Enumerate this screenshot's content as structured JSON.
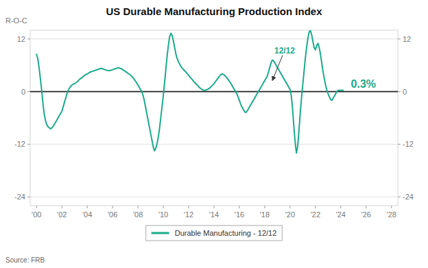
{
  "chart_data": {
    "type": "line",
    "title": "US Durable Manufacturing Production Index",
    "y_label": "R-O-C",
    "source": "Source: FRB",
    "grid": true,
    "legend": "lower center",
    "xlim": [
      1999.5,
      2028.5
    ],
    "xticks": [
      {
        "value": 2000,
        "label": "'00"
      },
      {
        "value": 2002,
        "label": "'02"
      },
      {
        "value": 2004,
        "label": "'04"
      },
      {
        "value": 2006,
        "label": "'06"
      },
      {
        "value": 2008,
        "label": "'08"
      },
      {
        "value": 2010,
        "label": "'10"
      },
      {
        "value": 2012,
        "label": "'12"
      },
      {
        "value": 2014,
        "label": "'14"
      },
      {
        "value": 2016,
        "label": "'16"
      },
      {
        "value": 2018,
        "label": "'18"
      },
      {
        "value": 2020,
        "label": "'20"
      },
      {
        "value": 2022,
        "label": "'22"
      },
      {
        "value": 2024,
        "label": "'24"
      },
      {
        "value": 2026,
        "label": "'26"
      },
      {
        "value": 2028,
        "label": "'28"
      }
    ],
    "ylim": [
      -26,
      14
    ],
    "yticks": [
      -24,
      -12,
      0,
      12
    ],
    "y2lim": [
      -26,
      14
    ],
    "y2ticks": [
      -24,
      -12,
      0,
      12
    ],
    "annotations": [
      {
        "text": "12/12",
        "x": 2018.6,
        "y": 2.5
      },
      {
        "text": "0.3%",
        "x": 2024.8,
        "y": 1.5
      }
    ],
    "x": [
      2000.0,
      2000.1,
      2000.2,
      2000.3,
      2000.4,
      2000.5,
      2000.6,
      2000.7,
      2000.8,
      2000.9,
      2001.0,
      2001.1,
      2001.2,
      2001.3,
      2001.4,
      2001.5,
      2001.6,
      2001.7,
      2001.8,
      2001.9,
      2002.0,
      2002.1,
      2002.2,
      2002.3,
      2002.4,
      2002.5,
      2002.6,
      2002.7,
      2002.8,
      2002.9,
      2003.0,
      2003.1,
      2003.2,
      2003.3,
      2003.4,
      2003.5,
      2003.6,
      2003.7,
      2003.8,
      2003.9,
      2004.0,
      2004.1,
      2004.2,
      2004.3,
      2004.4,
      2004.5,
      2004.6,
      2004.7,
      2004.8,
      2004.9,
      2005.0,
      2005.1,
      2005.2,
      2005.3,
      2005.4,
      2005.5,
      2005.6,
      2005.7,
      2005.8,
      2005.9,
      2006.0,
      2006.1,
      2006.2,
      2006.3,
      2006.4,
      2006.5,
      2006.6,
      2006.7,
      2006.8,
      2006.9,
      2007.0,
      2007.1,
      2007.2,
      2007.3,
      2007.4,
      2007.5,
      2007.6,
      2007.7,
      2007.8,
      2007.9,
      2008.0,
      2008.1,
      2008.2,
      2008.3,
      2008.4,
      2008.5,
      2008.6,
      2008.7,
      2008.8,
      2008.9,
      2009.0,
      2009.1,
      2009.2,
      2009.3,
      2009.4,
      2009.5,
      2009.6,
      2009.7,
      2009.8,
      2009.9,
      2010.0,
      2010.1,
      2010.2,
      2010.3,
      2010.4,
      2010.5,
      2010.6,
      2010.7,
      2010.8,
      2010.9,
      2011.0,
      2011.1,
      2011.2,
      2011.3,
      2011.4,
      2011.5,
      2011.6,
      2011.7,
      2011.8,
      2011.9,
      2012.0,
      2012.1,
      2012.2,
      2012.3,
      2012.4,
      2012.5,
      2012.6,
      2012.7,
      2012.8,
      2012.9,
      2013.0,
      2013.1,
      2013.2,
      2013.3,
      2013.4,
      2013.5,
      2013.6,
      2013.7,
      2013.8,
      2013.9,
      2014.0,
      2014.1,
      2014.2,
      2014.3,
      2014.4,
      2014.5,
      2014.6,
      2014.7,
      2014.8,
      2014.9,
      2015.0,
      2015.1,
      2015.2,
      2015.3,
      2015.4,
      2015.5,
      2015.6,
      2015.7,
      2015.8,
      2015.9,
      2016.0,
      2016.1,
      2016.2,
      2016.3,
      2016.4,
      2016.5,
      2016.6,
      2016.7,
      2016.8,
      2016.9,
      2017.0,
      2017.1,
      2017.2,
      2017.3,
      2017.4,
      2017.5,
      2017.6,
      2017.7,
      2017.8,
      2017.9,
      2018.0,
      2018.1,
      2018.2,
      2018.3,
      2018.4,
      2018.5,
      2018.6,
      2018.7,
      2018.8,
      2018.9,
      2019.0,
      2019.1,
      2019.2,
      2019.3,
      2019.4,
      2019.5,
      2019.6,
      2019.7,
      2019.8,
      2019.9,
      2020.0,
      2020.1,
      2020.2,
      2020.3,
      2020.4,
      2020.5,
      2020.6,
      2020.7,
      2020.8,
      2020.9,
      2021.0,
      2021.1,
      2021.2,
      2021.3,
      2021.4,
      2021.5,
      2021.6,
      2021.7,
      2021.8,
      2021.9,
      2022.0,
      2022.1,
      2022.2,
      2022.3,
      2022.4,
      2022.5,
      2022.6,
      2022.7,
      2022.8,
      2022.9,
      2023.0,
      2023.1,
      2023.2,
      2023.3,
      2023.4,
      2023.5,
      2023.6,
      2023.7,
      2023.8,
      2023.9,
      2024.0,
      2024.1,
      2024.2
    ],
    "series": [
      {
        "name": "Durable Manufacturing - 12/12",
        "color": "#1aaa8a",
        "values": [
          8.5,
          7.5,
          5.5,
          3.0,
          0.5,
          -2.5,
          -5.0,
          -6.5,
          -7.5,
          -8.0,
          -8.2,
          -8.5,
          -8.3,
          -8.0,
          -7.5,
          -7.0,
          -6.5,
          -6.0,
          -5.5,
          -5.0,
          -4.5,
          -3.5,
          -2.5,
          -1.5,
          -0.5,
          0.3,
          0.8,
          1.2,
          1.5,
          1.7,
          1.8,
          2.0,
          2.2,
          2.5,
          2.8,
          3.0,
          3.2,
          3.5,
          3.7,
          3.9,
          4.0,
          4.2,
          4.4,
          4.5,
          4.6,
          4.7,
          4.8,
          4.9,
          5.0,
          5.1,
          5.2,
          5.3,
          5.2,
          5.1,
          5.0,
          4.9,
          4.8,
          4.8,
          4.8,
          4.9,
          5.0,
          5.1,
          5.2,
          5.3,
          5.4,
          5.4,
          5.3,
          5.2,
          5.0,
          4.8,
          4.6,
          4.4,
          4.2,
          4.0,
          3.8,
          3.5,
          3.2,
          2.8,
          2.4,
          2.0,
          1.5,
          1.0,
          0.5,
          0.0,
          -0.8,
          -2.0,
          -3.5,
          -5.0,
          -6.5,
          -8.0,
          -9.5,
          -11.0,
          -12.5,
          -13.5,
          -13.0,
          -12.0,
          -10.5,
          -8.5,
          -6.0,
          -3.5,
          -1.0,
          2.0,
          5.0,
          8.0,
          10.5,
          12.5,
          13.3,
          12.8,
          11.5,
          10.0,
          8.5,
          7.5,
          6.8,
          6.2,
          5.7,
          5.3,
          5.0,
          4.7,
          4.4,
          4.0,
          3.7,
          3.3,
          3.0,
          2.7,
          2.3,
          2.0,
          1.7,
          1.4,
          1.1,
          0.8,
          0.6,
          0.4,
          0.3,
          0.3,
          0.4,
          0.5,
          0.7,
          0.9,
          1.2,
          1.5,
          1.8,
          2.2,
          2.6,
          3.0,
          3.4,
          3.7,
          4.0,
          4.0,
          3.8,
          3.5,
          3.2,
          2.8,
          2.4,
          2.0,
          1.5,
          1.0,
          0.5,
          0.0,
          -0.5,
          -1.2,
          -2.0,
          -2.8,
          -3.5,
          -4.0,
          -4.5,
          -4.8,
          -4.5,
          -4.0,
          -3.5,
          -3.0,
          -2.5,
          -2.0,
          -1.5,
          -1.0,
          -0.5,
          0.0,
          0.5,
          1.0,
          1.5,
          2.0,
          2.5,
          3.0,
          3.5,
          4.5,
          5.5,
          6.5,
          7.2,
          7.0,
          6.5,
          6.0,
          5.5,
          5.0,
          4.5,
          4.0,
          3.5,
          3.0,
          2.5,
          2.0,
          1.5,
          1.0,
          0.5,
          -1.0,
          -4.0,
          -8.0,
          -11.5,
          -14.0,
          -12.5,
          -9.0,
          -5.0,
          -1.5,
          1.5,
          4.5,
          7.5,
          10.0,
          12.0,
          13.5,
          14.0,
          13.0,
          11.5,
          10.0,
          9.5,
          10.5,
          11.0,
          10.0,
          8.5,
          6.5,
          4.5,
          3.0,
          1.5,
          0.3,
          -0.5,
          -1.2,
          -1.8,
          -2.0,
          -1.5,
          -1.0,
          -0.5,
          0.0,
          0.3,
          0.3,
          0.3,
          0.3,
          0.3
        ]
      }
    ]
  }
}
